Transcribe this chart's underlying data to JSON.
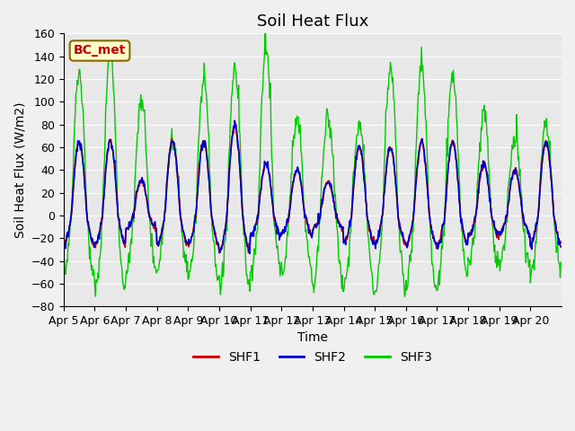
{
  "title": "Soil Heat Flux",
  "ylabel": "Soil Heat Flux (W/m2)",
  "xlabel": "Time",
  "ylim": [
    -80,
    160
  ],
  "yticks": [
    -80,
    -60,
    -40,
    -20,
    0,
    20,
    40,
    60,
    80,
    100,
    120,
    140,
    160
  ],
  "xtick_labels": [
    "Apr 5",
    "Apr 6",
    "Apr 7",
    "Apr 8",
    "Apr 9",
    "Apr 10",
    "Apr 11",
    "Apr 12",
    "Apr 13",
    "Apr 14",
    "Apr 15",
    "Apr 16",
    "Apr 17",
    "Apr 18",
    "Apr 19",
    "Apr 20"
  ],
  "shf1_color": "#cc0000",
  "shf2_color": "#0000cc",
  "shf3_color": "#00cc00",
  "legend_labels": [
    "SHF1",
    "SHF2",
    "SHF3"
  ],
  "annotation_text": "BC_met",
  "annotation_color": "#cc0000",
  "annotation_bg": "#ffffcc",
  "annotation_edge": "#886600",
  "bg_color": "#e8e8e8",
  "fig_color": "#f0f0f0",
  "title_fontsize": 13,
  "label_fontsize": 10,
  "tick_fontsize": 9
}
